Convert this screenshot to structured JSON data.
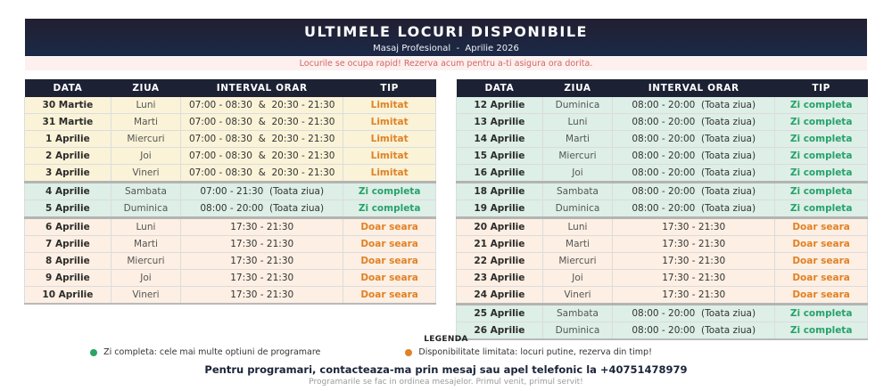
{
  "header": {
    "title": "ULTIMELE LOCURI DISPONIBILE",
    "subtitle": "Masaj Profesional  -  Aprilie 2026",
    "alert": "Locurile se ocupa rapid! Rezerva acum pentru a-ti asigura ora dorita."
  },
  "columns": [
    "DATA",
    "ZIUA",
    "INTERVAL ORAR",
    "TIP"
  ],
  "colors": {
    "banner_navy": "#1d2640",
    "table_header_navy": "#1d2134",
    "row_limited_bg": "#faf3d8",
    "row_full_bg": "#ddefe7",
    "row_evening_bg": "#fdefe3",
    "alert_bg": "#fdf0ee",
    "alert_text": "#cf6767",
    "tip_orange": "#e08226",
    "tip_green": "#27a26b"
  },
  "tables": {
    "left": {
      "rows": [
        {
          "date": "30 Martie",
          "day": "Luni",
          "interval": "07:00 - 08:30  &  20:30 - 21:30",
          "tip": "Limitat",
          "type": "limited",
          "group_start": false
        },
        {
          "date": "31 Martie",
          "day": "Marti",
          "interval": "07:00 - 08:30  &  20:30 - 21:30",
          "tip": "Limitat",
          "type": "limited",
          "group_start": false
        },
        {
          "date": "1 Aprilie",
          "day": "Miercuri",
          "interval": "07:00 - 08:30  &  20:30 - 21:30",
          "tip": "Limitat",
          "type": "limited",
          "group_start": false
        },
        {
          "date": "2 Aprilie",
          "day": "Joi",
          "interval": "07:00 - 08:30  &  20:30 - 21:30",
          "tip": "Limitat",
          "type": "limited",
          "group_start": false
        },
        {
          "date": "3 Aprilie",
          "day": "Vineri",
          "interval": "07:00 - 08:30  &  20:30 - 21:30",
          "tip": "Limitat",
          "type": "limited",
          "group_start": false
        },
        {
          "date": "4 Aprilie",
          "day": "Sambata",
          "interval": "07:00 - 21:30  (Toata ziua)",
          "tip": "Zi completa",
          "type": "full",
          "group_start": true
        },
        {
          "date": "5 Aprilie",
          "day": "Duminica",
          "interval": "08:00 - 20:00  (Toata ziua)",
          "tip": "Zi completa",
          "type": "full",
          "group_start": false
        },
        {
          "date": "6 Aprilie",
          "day": "Luni",
          "interval": "17:30 - 21:30",
          "tip": "Doar seara",
          "type": "evening",
          "group_start": true
        },
        {
          "date": "7 Aprilie",
          "day": "Marti",
          "interval": "17:30 - 21:30",
          "tip": "Doar seara",
          "type": "evening",
          "group_start": false
        },
        {
          "date": "8 Aprilie",
          "day": "Miercuri",
          "interval": "17:30 - 21:30",
          "tip": "Doar seara",
          "type": "evening",
          "group_start": false
        },
        {
          "date": "9 Aprilie",
          "day": "Joi",
          "interval": "17:30 - 21:30",
          "tip": "Doar seara",
          "type": "evening",
          "group_start": false
        },
        {
          "date": "10 Aprilie",
          "day": "Vineri",
          "interval": "17:30 - 21:30",
          "tip": "Doar seara",
          "type": "evening",
          "group_start": false
        }
      ]
    },
    "right": {
      "rows": [
        {
          "date": "12 Aprilie",
          "day": "Duminica",
          "interval": "08:00 - 20:00  (Toata ziua)",
          "tip": "Zi completa",
          "type": "full",
          "group_start": false
        },
        {
          "date": "13 Aprilie",
          "day": "Luni",
          "interval": "08:00 - 20:00  (Toata ziua)",
          "tip": "Zi completa",
          "type": "full",
          "group_start": false
        },
        {
          "date": "14 Aprilie",
          "day": "Marti",
          "interval": "08:00 - 20:00  (Toata ziua)",
          "tip": "Zi completa",
          "type": "full",
          "group_start": false
        },
        {
          "date": "15 Aprilie",
          "day": "Miercuri",
          "interval": "08:00 - 20:00  (Toata ziua)",
          "tip": "Zi completa",
          "type": "full",
          "group_start": false
        },
        {
          "date": "16 Aprilie",
          "day": "Joi",
          "interval": "08:00 - 20:00  (Toata ziua)",
          "tip": "Zi completa",
          "type": "full",
          "group_start": false
        },
        {
          "date": "18 Aprilie",
          "day": "Sambata",
          "interval": "08:00 - 20:00  (Toata ziua)",
          "tip": "Zi completa",
          "type": "full",
          "group_start": true
        },
        {
          "date": "19 Aprilie",
          "day": "Duminica",
          "interval": "08:00 - 20:00  (Toata ziua)",
          "tip": "Zi completa",
          "type": "full",
          "group_start": false
        },
        {
          "date": "20 Aprilie",
          "day": "Luni",
          "interval": "17:30 - 21:30",
          "tip": "Doar seara",
          "type": "evening",
          "group_start": true
        },
        {
          "date": "21 Aprilie",
          "day": "Marti",
          "interval": "17:30 - 21:30",
          "tip": "Doar seara",
          "type": "evening",
          "group_start": false
        },
        {
          "date": "22 Aprilie",
          "day": "Miercuri",
          "interval": "17:30 - 21:30",
          "tip": "Doar seara",
          "type": "evening",
          "group_start": false
        },
        {
          "date": "23 Aprilie",
          "day": "Joi",
          "interval": "17:30 - 21:30",
          "tip": "Doar seara",
          "type": "evening",
          "group_start": false
        },
        {
          "date": "24 Aprilie",
          "day": "Vineri",
          "interval": "17:30 - 21:30",
          "tip": "Doar seara",
          "type": "evening",
          "group_start": false
        },
        {
          "date": "25 Aprilie",
          "day": "Sambata",
          "interval": "08:00 - 20:00  (Toata ziua)",
          "tip": "Zi completa",
          "type": "full",
          "group_start": true
        },
        {
          "date": "26 Aprilie",
          "day": "Duminica",
          "interval": "08:00 - 20:00  (Toata ziua)",
          "tip": "Zi completa",
          "type": "full",
          "group_start": false
        }
      ]
    }
  },
  "legend": {
    "title": "LEGENDA",
    "items": [
      {
        "dot_color": "#2aa564",
        "label": "Zi completa: cele mai multe optiuni de programare"
      },
      {
        "dot_color": "#e08226",
        "label": "Disponibilitate limitata: locuri putine, rezerva din timp!"
      }
    ]
  },
  "footer": {
    "contact": "Pentru programari, contacteaza-ma prin mesaj sau apel telefonic la +40751478979",
    "note": "Programarile se fac in ordinea mesajelor. Primul venit, primul servit!"
  }
}
